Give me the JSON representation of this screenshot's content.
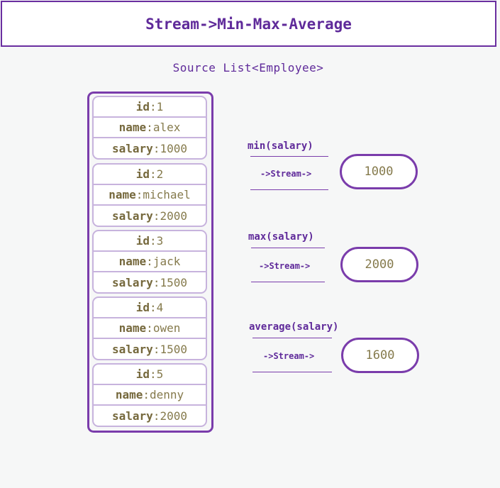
{
  "title": "Stream->Min-Max-Average",
  "source_label": "Source List<Employee>",
  "employees": [
    {
      "id_key": "id",
      "id_sep": ": ",
      "id": "1",
      "name_key": "name",
      "name_sep": ":",
      "name": "alex",
      "salary_key": "salary",
      "salary_sep": ":",
      "salary": "1000"
    },
    {
      "id_key": "id",
      "id_sep": ": ",
      "id": "2",
      "name_key": "name",
      "name_sep": ":",
      "name": "michael",
      "salary_key": "salary",
      "salary_sep": ":",
      "salary": "2000"
    },
    {
      "id_key": "id",
      "id_sep": ": ",
      "id": "3",
      "name_key": "name",
      "name_sep": ":",
      "name": "jack",
      "salary_key": "salary",
      "salary_sep": ":",
      "salary": "1500"
    },
    {
      "id_key": "id",
      "id_sep": ": ",
      "id": "4",
      "name_key": "name",
      "name_sep": ":",
      "name": "owen",
      "salary_key": "salary",
      "salary_sep": ":",
      "salary": "1500"
    },
    {
      "id_key": "id",
      "id_sep": ": ",
      "id": "5",
      "name_key": "name",
      "name_sep": ":",
      "name": "denny",
      "salary_key": "salary",
      "salary_sep": ":",
      "salary": "2000"
    }
  ],
  "operations": [
    {
      "label": "min(salary)",
      "arrow": "->Stream->",
      "result": "1000"
    },
    {
      "label": "max(salary)",
      "arrow": "->Stream->",
      "result": "2000"
    },
    {
      "label": "average(salary)",
      "arrow": "->Stream->",
      "result": "1600"
    }
  ],
  "colors": {
    "accent": "#6a2ea0",
    "card_border": "#c7b3dd",
    "value_text": "#857a4c"
  }
}
